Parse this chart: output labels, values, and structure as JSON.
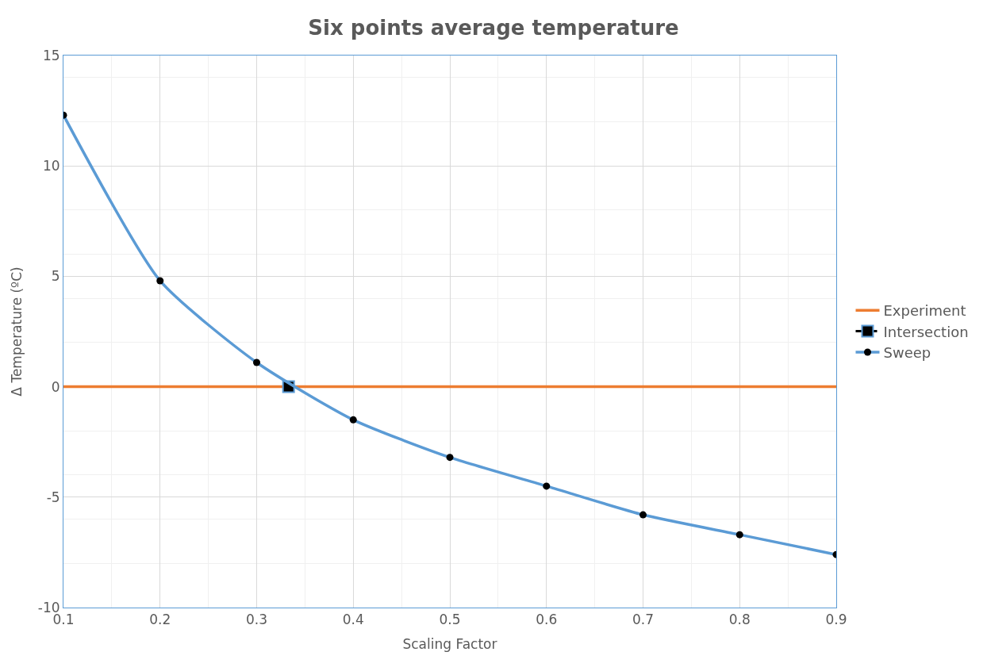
{
  "chart_data": {
    "type": "line",
    "title": "Six points average temperature",
    "xlabel": "Scaling Factor",
    "ylabel": "Δ Temperature (ºC)",
    "series": [
      {
        "name": "Experiment",
        "color": "#ed7d31",
        "marker": "none",
        "x": [
          0.1,
          0.9
        ],
        "values": [
          0,
          0
        ]
      },
      {
        "name": "Intersection",
        "color": "#000000",
        "type": "scatter",
        "marker": "square",
        "line_style": "dashed",
        "x": [
          0.333
        ],
        "values": [
          0
        ]
      },
      {
        "name": "Sweep",
        "color": "#5b9bd5",
        "marker": "circle",
        "x": [
          0.1,
          0.2,
          0.3,
          0.4,
          0.5,
          0.6,
          0.7,
          0.8,
          0.9
        ],
        "values": [
          12.3,
          4.8,
          1.1,
          -1.5,
          -3.2,
          -4.5,
          -5.8,
          -6.7,
          -7.6
        ]
      }
    ],
    "xlim": [
      0.1,
      0.9
    ],
    "xticks": [
      0.1,
      0.2,
      0.3,
      0.4,
      0.5,
      0.6,
      0.7,
      0.8,
      0.9
    ],
    "ylim": [
      -10,
      15
    ],
    "yticks": [
      -10,
      -5,
      0,
      5,
      10,
      15
    ],
    "grid": true,
    "legend": "right"
  }
}
